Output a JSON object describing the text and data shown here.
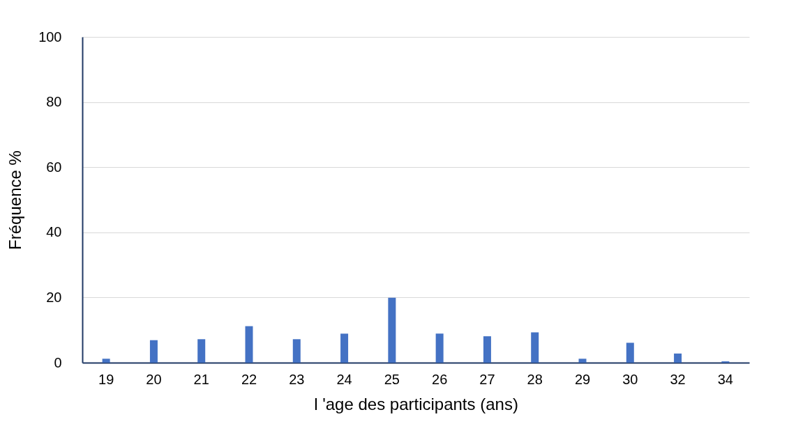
{
  "chart_data": {
    "type": "bar",
    "xlabel": "l 'age des participants (ans)",
    "ylabel": "Fréquence %",
    "categories": [
      "19",
      "20",
      "21",
      "22",
      "23",
      "24",
      "25",
      "26",
      "27",
      "28",
      "29",
      "30",
      "32",
      "34"
    ],
    "values": [
      1.2,
      6.9,
      7.2,
      11.2,
      7.2,
      8.9,
      19.9,
      8.9,
      8.1,
      9.3,
      1.2,
      6.1,
      2.8,
      0.4
    ],
    "color": "#4472c4",
    "ylim": [
      0,
      100
    ],
    "yticks": [
      0,
      20,
      40,
      60,
      80,
      100
    ],
    "grid": "y"
  }
}
